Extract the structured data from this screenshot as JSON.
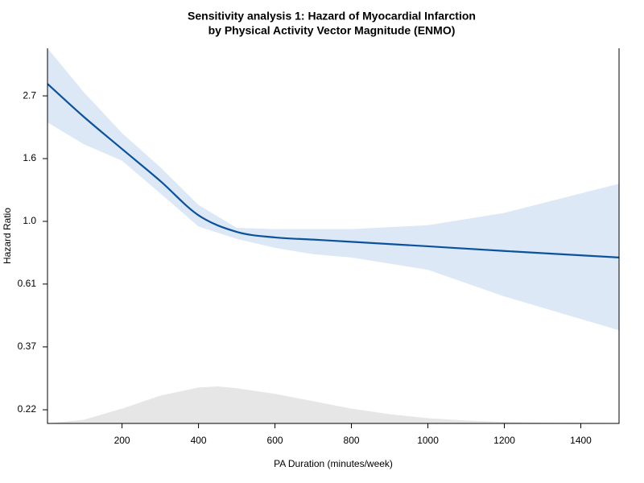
{
  "chart_data": {
    "type": "line",
    "title": [
      "Sensitivity analysis 1: Hazard of Myocardial Infarction",
      "by Physical Activity Vector Magnitude (ENMO)"
    ],
    "x_label": "PA Duration (minutes/week)",
    "y_label": "Hazard Ratio",
    "log_y": true,
    "x": [
      5,
      100,
      200,
      300,
      400,
      500,
      600,
      700,
      800,
      1000,
      1200,
      1500
    ],
    "values": [
      2.99,
      2.3,
      1.78,
      1.38,
      1.05,
      0.92,
      0.88,
      0.865,
      0.85,
      0.82,
      0.79,
      0.75
    ],
    "lower": [
      2.2,
      1.85,
      1.62,
      1.25,
      0.96,
      0.87,
      0.81,
      0.77,
      0.75,
      0.68,
      0.55,
      0.42
    ],
    "upper": [
      3.97,
      2.8,
      2.02,
      1.54,
      1.14,
      0.95,
      0.94,
      0.94,
      0.94,
      0.97,
      1.07,
      1.35
    ],
    "color": "#0b529c",
    "band_color": "#dce8f5",
    "density_x": [
      5,
      100,
      150,
      200,
      300,
      400,
      450,
      500,
      600,
      700,
      800,
      900,
      1000,
      1100,
      1200,
      1300,
      1500
    ],
    "density": [
      0,
      0.1,
      0.25,
      0.4,
      0.75,
      0.97,
      1,
      0.95,
      0.8,
      0.6,
      0.4,
      0.25,
      0.14,
      0.08,
      0.04,
      0.02,
      0.01
    ],
    "density_color": "#e6e6e6",
    "xlim": [
      5,
      1500
    ],
    "ylim": [
      0.2,
      3.97
    ],
    "xticks": [
      200,
      400,
      600,
      800,
      1000,
      1200,
      1400
    ],
    "yticks": [
      {
        "value": 0.223,
        "label": "0.22"
      },
      {
        "value": 0.368,
        "label": "0.37"
      },
      {
        "value": 0.607,
        "label": "0.61"
      },
      {
        "value": 1,
        "label": "1.0"
      },
      {
        "value": 1.649,
        "label": "1.6"
      },
      {
        "value": 2.718,
        "label": "2.7"
      }
    ]
  }
}
